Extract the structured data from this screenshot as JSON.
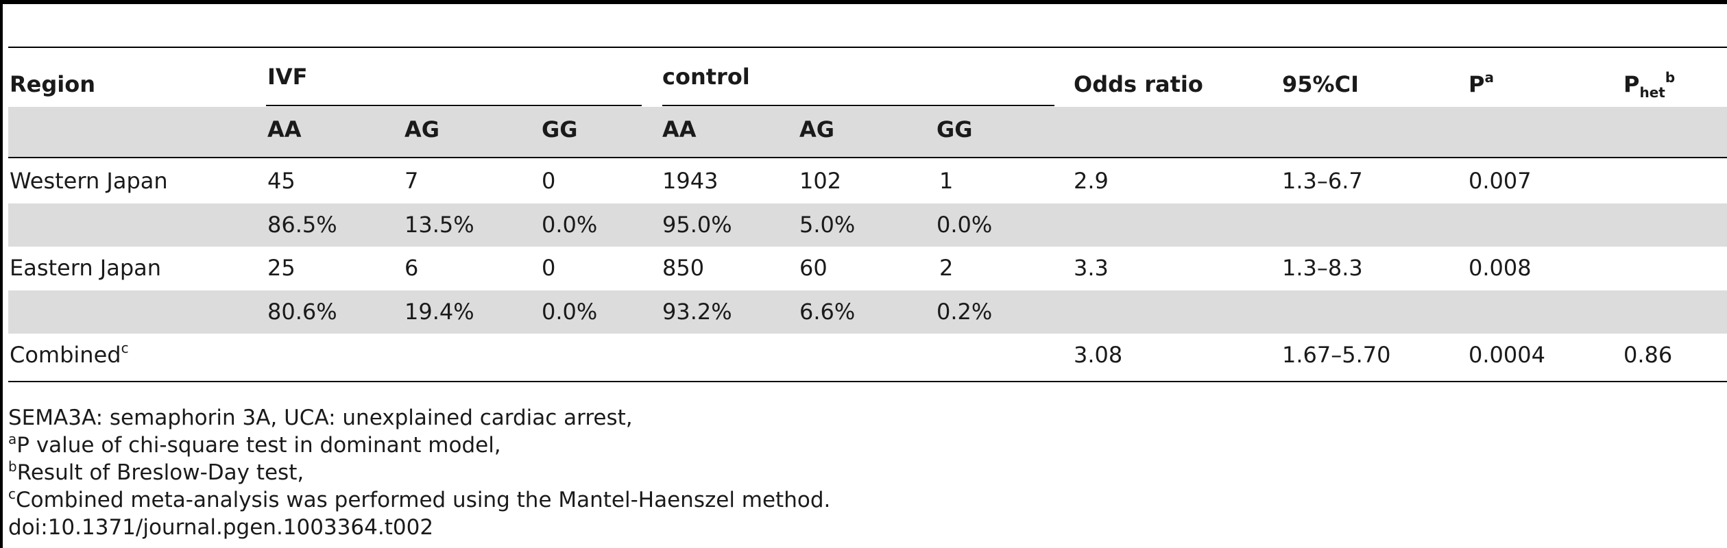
{
  "table": {
    "headers": {
      "region": "Region",
      "ivf": "IVF",
      "control": "control",
      "odds_ratio": "Odds ratio",
      "ci": "95%CI",
      "p": "P",
      "p_sup": "a",
      "phet": "P",
      "phet_sub": "het",
      "phet_sup": "b",
      "sub_cols": [
        "AA",
        "AG",
        "GG",
        "AA",
        "AG",
        "GG"
      ]
    },
    "rows": [
      {
        "region": "Western Japan",
        "counts": [
          "45",
          "7",
          "0",
          "1943",
          "102",
          "1"
        ],
        "percents": [
          "86.5%",
          "13.5%",
          "0.0%",
          "95.0%",
          "5.0%",
          "0.0%"
        ],
        "odds_ratio": "2.9",
        "ci": "1.3–6.7",
        "p": "0.007",
        "phet": ""
      },
      {
        "region": "Eastern Japan",
        "counts": [
          "25",
          "6",
          "0",
          "850",
          "60",
          "2"
        ],
        "percents": [
          "80.6%",
          "19.4%",
          "0.0%",
          "93.2%",
          "6.6%",
          "0.2%"
        ],
        "odds_ratio": "3.3",
        "ci": "1.3–8.3",
        "p": "0.008",
        "phet": ""
      }
    ],
    "combined": {
      "region": "Combined",
      "region_sup": "c",
      "odds_ratio": "3.08",
      "ci": "1.67–5.70",
      "p": "0.0004",
      "phet": "0.86"
    }
  },
  "footnotes": {
    "line1": "SEMA3A: semaphorin 3A, UCA: unexplained cardiac arrest,",
    "a_mark": "a",
    "a_text": "P value of chi-square test in dominant model,",
    "b_mark": "b",
    "b_text": "Result of Breslow-Day test,",
    "c_mark": "c",
    "c_text": "Combined meta-analysis was performed using the Mantel-Haenszel method.",
    "doi": "doi:10.1371/journal.pgen.1003364.t002"
  },
  "colors": {
    "band": "#dcdcdc",
    "rule": "#000000",
    "text": "#1a1a1a"
  }
}
